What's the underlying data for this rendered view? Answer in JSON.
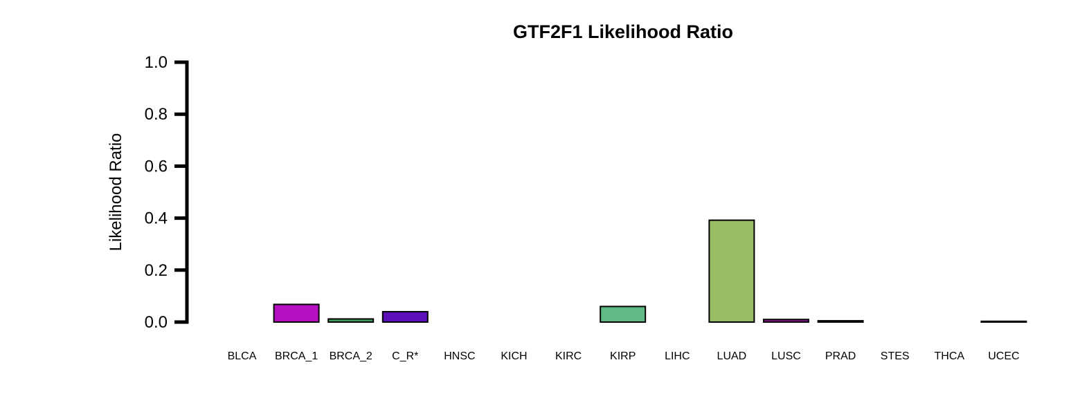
{
  "chart_data": {
    "type": "bar",
    "title": "GTF2F1 Likelihood Ratio",
    "xlabel": "",
    "ylabel": "Likelihood Ratio",
    "ylim": [
      0,
      1.0
    ],
    "yticks": [
      "0.0",
      "0.2",
      "0.4",
      "0.6",
      "0.8",
      "1.0"
    ],
    "categories": [
      "BLCA",
      "BRCA_1",
      "BRCA_2",
      "C_R*",
      "HNSC",
      "KICH",
      "KIRC",
      "KIRP",
      "LIHC",
      "LUAD",
      "LUSC",
      "PRAD",
      "STES",
      "THCA",
      "UCEC"
    ],
    "values": [
      0.0,
      0.068,
      0.012,
      0.04,
      0.0,
      0.0,
      0.0,
      0.06,
      0.0,
      0.392,
      0.01,
      0.005,
      0.0,
      0.0,
      0.003
    ],
    "colors": [
      "#e8e8e8",
      "#b510c1",
      "#3da05a",
      "#5c10b8",
      "#e8e8e8",
      "#e8e8e8",
      "#e8e8e8",
      "#60bb84",
      "#e8e8e8",
      "#97be62",
      "#8a1090",
      "#7a4040",
      "#e8e8e8",
      "#e8e8e8",
      "#505050"
    ],
    "grid": false,
    "legend": "none"
  }
}
